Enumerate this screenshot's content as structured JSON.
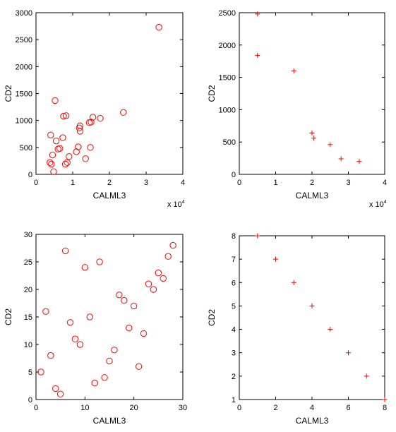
{
  "chart_data": [
    {
      "type": "scatter",
      "marker": "circle",
      "color": "#ff0000",
      "xlabel": "CALML3",
      "ylabel": "CD2",
      "x_multiplier_label": "x 10",
      "x_multiplier_exp": "4",
      "xlim": [
        0,
        40000
      ],
      "ylim": [
        0,
        3000
      ],
      "xticks": [
        0,
        10000,
        20000,
        30000,
        40000
      ],
      "xtick_labels": [
        "0",
        "1",
        "2",
        "3",
        "4"
      ],
      "yticks": [
        0,
        500,
        1000,
        1500,
        2000,
        2500,
        3000
      ],
      "ytick_labels": [
        "0",
        "500",
        "1000",
        "1500",
        "2000",
        "2500",
        "3000"
      ],
      "x": [
        33500,
        23800,
        17500,
        15500,
        15000,
        14500,
        14800,
        13500,
        12000,
        11800,
        12000,
        11500,
        11000,
        9000,
        8500,
        8200,
        8000,
        7500,
        7300,
        6500,
        6000,
        5500,
        5200,
        4800,
        4500,
        4200,
        4000,
        3800
      ],
      "y": [
        2730,
        1150,
        1040,
        1060,
        970,
        960,
        500,
        290,
        900,
        860,
        800,
        510,
        420,
        330,
        220,
        1090,
        190,
        1080,
        680,
        480,
        470,
        620,
        1370,
        50,
        360,
        190,
        730,
        220
      ]
    },
    {
      "type": "scatter",
      "marker": "plus",
      "color": "#ff0000",
      "xlabel": "CALML3",
      "ylabel": "CD2",
      "x_multiplier_label": "x 10",
      "x_multiplier_exp": "4",
      "xlim": [
        0,
        40000
      ],
      "ylim": [
        0,
        2500
      ],
      "xticks": [
        0,
        10000,
        20000,
        30000,
        40000
      ],
      "xtick_labels": [
        "0",
        "1",
        "2",
        "3",
        "4"
      ],
      "yticks": [
        0,
        500,
        1000,
        1500,
        2000,
        2500
      ],
      "ytick_labels": [
        "0",
        "500",
        "1000",
        "1500",
        "2000",
        "2500"
      ],
      "x": [
        5000,
        5000,
        15000,
        20000,
        20500,
        25000,
        28000,
        33000
      ],
      "y": [
        2480,
        1840,
        1600,
        640,
        560,
        460,
        240,
        200
      ]
    },
    {
      "type": "scatter",
      "marker": "circle",
      "color": "#ff0000",
      "xlabel": "CALML3",
      "ylabel": "CD2",
      "xlim": [
        0,
        30
      ],
      "ylim": [
        0,
        30
      ],
      "xticks": [
        0,
        10,
        20,
        30
      ],
      "xtick_labels": [
        "0",
        "10",
        "20",
        "30"
      ],
      "yticks": [
        0,
        5,
        10,
        15,
        20,
        25,
        30
      ],
      "ytick_labels": [
        "0",
        "5",
        "10",
        "15",
        "20",
        "25",
        "30"
      ],
      "x": [
        1,
        2,
        3,
        4,
        5,
        6,
        7,
        8,
        9,
        10,
        11,
        12,
        13,
        14,
        15,
        16,
        17,
        18,
        19,
        20,
        21,
        22,
        23,
        24,
        25,
        26,
        27,
        28
      ],
      "y": [
        5,
        16,
        8,
        2,
        1,
        27,
        14,
        11,
        10,
        24,
        15,
        3,
        25,
        4,
        7,
        9,
        19,
        18,
        13,
        17,
        6,
        12,
        21,
        20,
        23,
        22,
        26,
        28
      ]
    },
    {
      "type": "scatter",
      "marker": "plus",
      "color": "#ff0000",
      "xlabel": "CALML3",
      "ylabel": "CD2",
      "xlim": [
        0,
        8
      ],
      "ylim": [
        1,
        8
      ],
      "xticks": [
        0,
        2,
        4,
        6,
        8
      ],
      "xtick_labels": [
        "0",
        "2",
        "4",
        "6",
        "8"
      ],
      "yticks": [
        1,
        2,
        3,
        4,
        5,
        6,
        7,
        8
      ],
      "ytick_labels": [
        "1",
        "2",
        "3",
        "4",
        "5",
        "6",
        "7",
        "8"
      ],
      "x": [
        1,
        2,
        3,
        4,
        5,
        6,
        7,
        8
      ],
      "y": [
        8,
        7,
        6,
        5,
        4,
        3,
        2,
        1
      ]
    }
  ]
}
